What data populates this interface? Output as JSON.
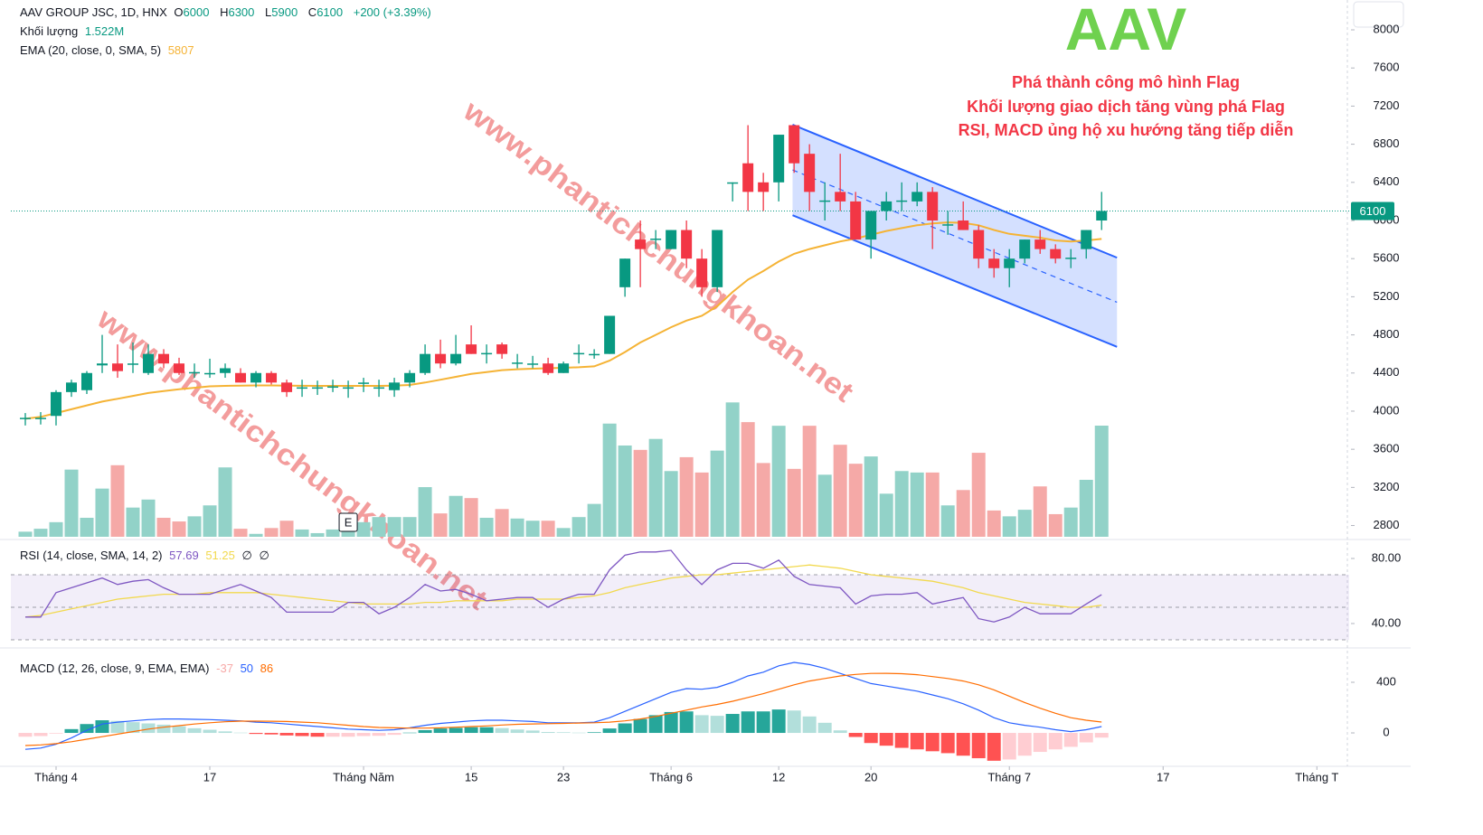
{
  "header": {
    "symbol": "AAV GROUP JSC, 1D, HNX",
    "ohlc": [
      {
        "label": "O",
        "value": 6000
      },
      {
        "label": "H",
        "value": 6300
      },
      {
        "label": "L",
        "value": 5900
      },
      {
        "label": "C",
        "value": 6100
      }
    ],
    "change": "+200 (+3.39%)"
  },
  "chart_data": {
    "type": "candlestick",
    "xlim": [
      -0.94,
      86.1
    ],
    "xticks": [
      {
        "value": 2,
        "label": "Tháng 4"
      },
      {
        "value": 12,
        "label": "17"
      },
      {
        "value": 22,
        "label": "Tháng Năm"
      },
      {
        "value": 29,
        "label": "15"
      },
      {
        "value": 35,
        "label": "23"
      },
      {
        "value": 42,
        "label": "Tháng 6"
      },
      {
        "value": 49,
        "label": "12"
      },
      {
        "value": 55,
        "label": "20"
      },
      {
        "value": 64,
        "label": "Tháng 7"
      },
      {
        "value": 74,
        "label": "17"
      },
      {
        "value": 84,
        "label": "Tháng T"
      }
    ],
    "ylim": [
      2682,
      8313
    ],
    "yticks": [
      2800,
      3200,
      3600,
      4000,
      4400,
      4800,
      5200,
      5600,
      6000,
      6400,
      6800,
      7200,
      7600,
      8000
    ],
    "up_color": "#089981",
    "down_color": "#f23645",
    "open": [
      3920,
      3930,
      3950,
      4200,
      4220,
      4480,
      4500,
      4500,
      4400,
      4600,
      4500,
      4400,
      4400,
      4400,
      4400,
      4300,
      4400,
      4300,
      4250,
      4250,
      4250,
      4250,
      4300,
      4250,
      4220,
      4300,
      4400,
      4600,
      4500,
      4700,
      4600,
      4700,
      4500,
      4500,
      4500,
      4400,
      4600,
      4600,
      4600,
      5300,
      5800,
      5800,
      5700,
      5900,
      5600,
      5300,
      6400,
      6600,
      6400,
      6400,
      7000,
      6700,
      6200,
      6300,
      6200,
      5800,
      6100,
      6200,
      6200,
      6300,
      5950,
      6000,
      5900,
      5600,
      5500,
      5600,
      5800,
      5700,
      5600,
      5700,
      6000
    ],
    "high": [
      3980,
      3990,
      4220,
      4330,
      4420,
      4800,
      4700,
      4720,
      4700,
      4650,
      4560,
      4500,
      4550,
      4500,
      4450,
      4420,
      4420,
      4330,
      4330,
      4320,
      4330,
      4320,
      4350,
      4330,
      4350,
      4430,
      4700,
      4750,
      4800,
      4900,
      4700,
      4720,
      4600,
      4580,
      4560,
      4520,
      4700,
      4650,
      5000,
      5600,
      6000,
      5900,
      5900,
      6000,
      5700,
      5900,
      6400,
      7000,
      6500,
      6900,
      7000,
      6800,
      6400,
      6700,
      6300,
      6100,
      6300,
      6400,
      6400,
      6350,
      6100,
      6200,
      5950,
      5700,
      5700,
      5800,
      5900,
      5750,
      5700,
      5900,
      6300
    ],
    "low": [
      3850,
      3860,
      3850,
      4150,
      4180,
      4400,
      4350,
      4400,
      4380,
      4450,
      4380,
      4350,
      4350,
      4350,
      4300,
      4250,
      4280,
      4150,
      4150,
      4170,
      4200,
      4140,
      4200,
      4150,
      4150,
      4250,
      4380,
      4450,
      4480,
      4600,
      4500,
      4550,
      4450,
      4450,
      4380,
      4400,
      4500,
      4550,
      4600,
      5200,
      5300,
      5700,
      5700,
      5500,
      5200,
      5250,
      6200,
      6100,
      6100,
      6200,
      6500,
      6100,
      6000,
      6100,
      5800,
      5600,
      6000,
      6100,
      6150,
      5700,
      5850,
      5900,
      5500,
      5400,
      5300,
      5550,
      5650,
      5550,
      5500,
      5600,
      5900
    ],
    "close": [
      3930,
      3930,
      4200,
      4300,
      4400,
      4500,
      4420,
      4500,
      4600,
      4500,
      4400,
      4410,
      4400,
      4450,
      4300,
      4400,
      4300,
      4200,
      4250,
      4250,
      4260,
      4250,
      4300,
      4250,
      4300,
      4400,
      4600,
      4500,
      4600,
      4600,
      4610,
      4600,
      4510,
      4500,
      4400,
      4500,
      4610,
      4600,
      5000,
      5600,
      5700,
      5810,
      5900,
      5600,
      5300,
      5900,
      6400,
      6300,
      6300,
      6900,
      6600,
      6300,
      6210,
      6200,
      5800,
      6100,
      6200,
      6210,
      6300,
      6000,
      5960,
      5900,
      5600,
      5500,
      5600,
      5800,
      5700,
      5600,
      5610,
      5900,
      6100
    ],
    "volume": {
      "name": "Khối lượng",
      "last_label": "1.522M",
      "ylim": [
        0,
        7.35
      ],
      "up_color": "#92d2c8",
      "down_color": "#f5a9a7",
      "values": [
        0.07,
        0.11,
        0.2,
        0.92,
        0.26,
        0.66,
        0.98,
        0.4,
        0.51,
        0.26,
        0.21,
        0.28,
        0.43,
        0.95,
        0.11,
        0.04,
        0.12,
        0.22,
        0.1,
        0.05,
        0.1,
        0.14,
        0.2,
        0.27,
        0.27,
        0.27,
        0.68,
        0.32,
        0.56,
        0.53,
        0.26,
        0.38,
        0.25,
        0.22,
        0.22,
        0.12,
        0.27,
        0.45,
        1.55,
        1.25,
        1.19,
        1.34,
        0.9,
        1.09,
        0.88,
        1.18,
        1.84,
        1.57,
        1.01,
        1.52,
        0.93,
        1.52,
        0.85,
        1.26,
        1.0,
        1.1,
        0.59,
        0.9,
        0.88,
        0.88,
        0.43,
        0.64,
        1.15,
        0.36,
        0.28,
        0.37,
        0.69,
        0.31,
        0.4,
        0.78,
        1.522
      ]
    },
    "ema": {
      "name": "EMA (20, close, 0, SMA, 5)",
      "color": "#f5b335",
      "values": [
        3920,
        3940,
        3980,
        4020,
        4060,
        4100,
        4130,
        4160,
        4190,
        4210,
        4230,
        4245,
        4260,
        4265,
        4268,
        4270,
        4270,
        4268,
        4266,
        4265,
        4265,
        4265,
        4265,
        4265,
        4268,
        4275,
        4300,
        4330,
        4360,
        4390,
        4410,
        4430,
        4440,
        4445,
        4450,
        4455,
        4460,
        4470,
        4530,
        4620,
        4720,
        4800,
        4880,
        4950,
        5000,
        5100,
        5250,
        5380,
        5470,
        5570,
        5650,
        5700,
        5740,
        5780,
        5810,
        5850,
        5890,
        5920,
        5950,
        5970,
        5980,
        5975,
        5950,
        5900,
        5860,
        5840,
        5820,
        5790,
        5780,
        5790,
        5807
      ]
    },
    "channel": {
      "x": [
        49.9,
        71
      ],
      "upper": [
        7005,
        5610
      ],
      "lower": [
        6055,
        4675
      ],
      "color": "#2962ff"
    },
    "event": {
      "label": "E",
      "x": 21
    },
    "annotations": {
      "ticker": "AAV",
      "lines": [
        "Phá thành công mô hình Flag",
        "Khối lượng giao dịch tăng vùng phá Flag",
        "RSI, MACD ủng hộ xu hướng tăng tiếp diễn"
      ]
    },
    "watermark": "www.phantichchungkhoan.net",
    "rsi": {
      "name": "RSI (14, close, SMA, 14, 2)",
      "color": "#7e57c2",
      "extra": [
        "∅",
        "∅"
      ],
      "ylim": [
        26.1,
        90
      ],
      "yticks": [
        {
          "value": 40,
          "label": "40.00"
        },
        {
          "value": 80,
          "label": "80.00"
        }
      ],
      "levels": [
        70,
        50,
        30
      ],
      "values": [
        44,
        44,
        59,
        62,
        65,
        68,
        64,
        66,
        67,
        62,
        58,
        58,
        58,
        61,
        64,
        60,
        56,
        47,
        47,
        47,
        47,
        53,
        53,
        46,
        50,
        56,
        64,
        60,
        61,
        58,
        54,
        55,
        56,
        56,
        50,
        55,
        58,
        58,
        73,
        82,
        84,
        84,
        85,
        73,
        64,
        73,
        77,
        77,
        74,
        79,
        69,
        64,
        63,
        62,
        52,
        57,
        58,
        58,
        59,
        52,
        54,
        56,
        43,
        41,
        44,
        50,
        46,
        46,
        46,
        52,
        57.69
      ],
      "ma": {
        "color": "#f2d94e",
        "values": [
          44,
          45,
          47,
          49,
          51,
          53,
          55,
          56,
          57,
          58,
          58,
          58,
          59,
          59,
          59,
          59,
          58,
          57,
          56,
          55,
          54,
          53,
          52,
          52,
          52,
          52,
          53,
          53,
          54,
          54,
          54,
          54,
          55,
          55,
          55,
          55,
          56,
          57,
          59,
          62,
          64,
          66,
          68,
          69,
          70,
          70,
          71,
          72,
          73,
          74,
          75,
          76,
          75,
          74,
          72,
          70,
          69,
          68,
          67,
          66,
          64,
          62,
          59,
          57,
          55,
          53,
          52,
          51,
          50,
          50,
          51.25
        ]
      }
    },
    "macd": {
      "name": "MACD (12, 26, close, 9, EMA, EMA)",
      "ylim": [
        -264,
        650
      ],
      "yticks": [
        0,
        400
      ],
      "macd": {
        "color": "#2962ff",
        "values": [
          -130,
          -120,
          -90,
          -40,
          20,
          70,
          85,
          95,
          105,
          110,
          110,
          107,
          105,
          100,
          95,
          85,
          80,
          70,
          60,
          50,
          40,
          30,
          25,
          20,
          25,
          40,
          60,
          75,
          85,
          95,
          100,
          100,
          95,
          90,
          80,
          80,
          80,
          85,
          120,
          170,
          220,
          270,
          320,
          350,
          345,
          360,
          400,
          450,
          480,
          530,
          557,
          540,
          510,
          470,
          430,
          390,
          370,
          350,
          330,
          300,
          270,
          230,
          180,
          120,
          80,
          60,
          45,
          25,
          10,
          25,
          50
        ]
      },
      "signal": {
        "color": "#ff6d00",
        "values": [
          -100,
          -95,
          -85,
          -70,
          -50,
          -30,
          -10,
          10,
          30,
          45,
          57,
          70,
          80,
          88,
          93,
          93,
          92,
          90,
          85,
          80,
          70,
          60,
          50,
          43,
          40,
          38,
          38,
          40,
          45,
          50,
          55,
          62,
          68,
          71,
          73,
          75,
          78,
          80,
          85,
          95,
          110,
          130,
          155,
          180,
          205,
          225,
          250,
          280,
          310,
          345,
          380,
          410,
          430,
          450,
          462,
          470,
          471,
          468,
          460,
          445,
          430,
          410,
          380,
          340,
          290,
          240,
          195,
          155,
          120,
          100,
          86
        ]
      },
      "histogram": {
        "values": [
          -30,
          -25,
          -5,
          30,
          70,
          100,
          95,
          85,
          75,
          65,
          53,
          37,
          25,
          12,
          2,
          -8,
          -12,
          -20,
          -25,
          -30,
          -30,
          -30,
          -25,
          -23,
          -15,
          2,
          22,
          35,
          40,
          45,
          45,
          38,
          27,
          19,
          7,
          5,
          2,
          5,
          35,
          75,
          110,
          140,
          165,
          170,
          140,
          135,
          150,
          170,
          170,
          185,
          177,
          130,
          80,
          20,
          -32,
          -80,
          -101,
          -118,
          -130,
          -145,
          -160,
          -180,
          -200,
          -220,
          -210,
          -180,
          -150,
          -130,
          -110,
          -75,
          -37
        ]
      }
    }
  }
}
